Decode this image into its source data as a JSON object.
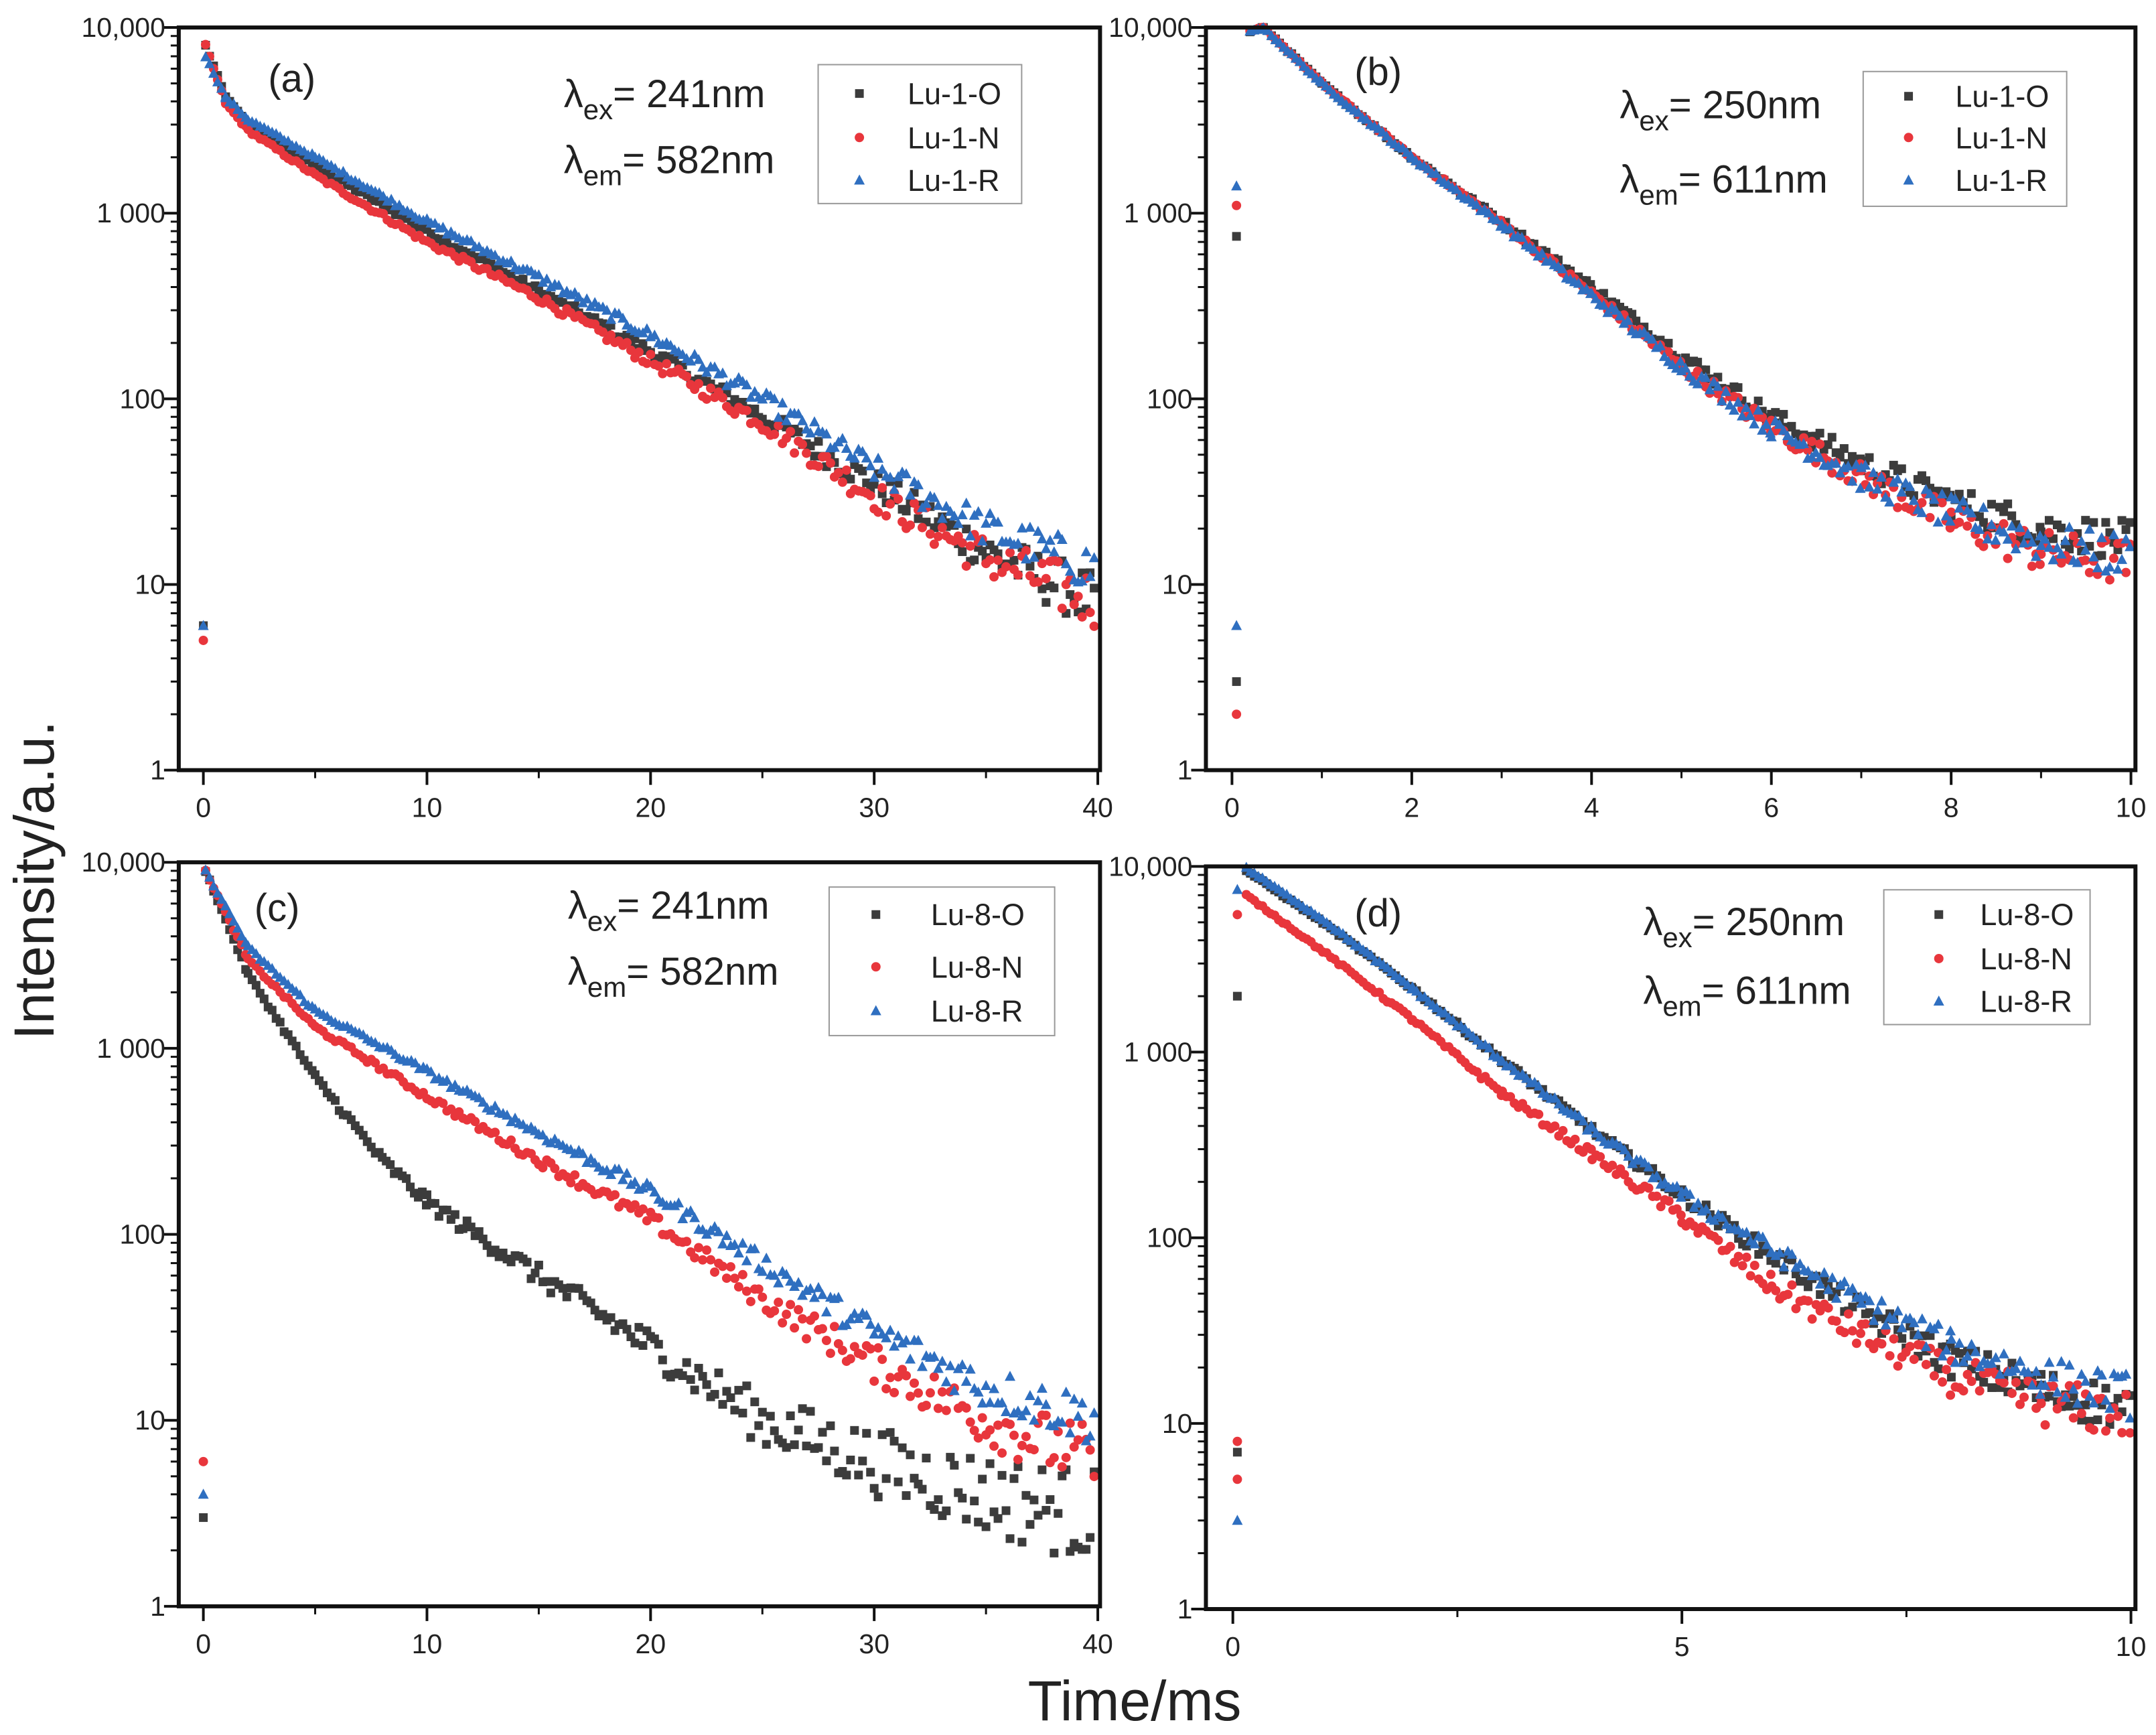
{
  "chart_data": {
    "type": "scatter",
    "ylabel": "Intensity/a.u.",
    "xlabel": "Time/ms",
    "yscale": "log",
    "ylim": [
      1,
      10000
    ],
    "yticks": [
      "1",
      "10",
      "100",
      "1 000",
      "10,000"
    ],
    "colors": {
      "O": "#3c3c3c",
      "N": "#e8363c",
      "R": "#2f6fc0"
    },
    "panels": [
      {
        "label": "(a)",
        "ex": {
          "lambda": "λ",
          "sub": "ex",
          "value": "= 241nm"
        },
        "em": {
          "lambda": "λ",
          "sub": "em",
          "value": "= 582nm"
        },
        "xlim": [
          -1.1,
          40.1
        ],
        "xticks": [
          0,
          10,
          20,
          30,
          40
        ],
        "xtick_labels": [
          "0",
          "10",
          "20",
          "30",
          "40"
        ],
        "legend": [
          "Lu-1-O",
          "Lu-1-N",
          "Lu-1-R"
        ],
        "series": [
          {
            "name": "Lu-1-O",
            "marker": "square",
            "outliers": [
              [
                0,
                6
              ]
            ],
            "points": [
              [
                0.1,
                8000
              ],
              [
                1,
                4200
              ],
              [
                2,
                3000
              ],
              [
                5,
                1800
              ],
              [
                10,
                800
              ],
              [
                15,
                380
              ],
              [
                20,
                180
              ],
              [
                25,
                80
              ],
              [
                30,
                35
              ],
              [
                35,
                15
              ],
              [
                40,
                8
              ]
            ]
          },
          {
            "name": "Lu-1-N",
            "marker": "circle",
            "outliers": [
              [
                0,
                5
              ]
            ],
            "points": [
              [
                0.1,
                8000
              ],
              [
                1,
                3900
              ],
              [
                2,
                2800
              ],
              [
                5,
                1600
              ],
              [
                10,
                700
              ],
              [
                15,
                350
              ],
              [
                20,
                160
              ],
              [
                25,
                75
              ],
              [
                30,
                30
              ],
              [
                35,
                14
              ],
              [
                40,
                8
              ]
            ]
          },
          {
            "name": "Lu-1-R",
            "marker": "triangle",
            "outliers": [
              [
                0,
                6
              ]
            ],
            "points": [
              [
                0.1,
                7000
              ],
              [
                1,
                4200
              ],
              [
                2,
                3200
              ],
              [
                5,
                2000
              ],
              [
                10,
                900
              ],
              [
                15,
                450
              ],
              [
                20,
                220
              ],
              [
                25,
                100
              ],
              [
                30,
                42
              ],
              [
                35,
                20
              ],
              [
                40,
                12
              ]
            ]
          }
        ]
      },
      {
        "label": "(b)",
        "ex": {
          "lambda": "λ",
          "sub": "ex",
          "value": "= 250nm"
        },
        "em": {
          "lambda": "λ",
          "sub": "em",
          "value": "= 611nm"
        },
        "xlim": [
          -0.29,
          10.05
        ],
        "xticks": [
          0,
          2,
          4,
          6,
          8,
          10
        ],
        "xtick_labels": [
          "0",
          "2",
          "4",
          "6",
          "8",
          "10"
        ],
        "legend": [
          "Lu-1-O",
          "Lu-1-N",
          "Lu-1-R"
        ],
        "series": [
          {
            "name": "Lu-1-O",
            "marker": "square",
            "outliers": [
              [
                0.05,
                3
              ],
              [
                0.05,
                750
              ]
            ],
            "points": [
              [
                0.2,
                9500
              ],
              [
                0.35,
                10000
              ],
              [
                1,
                5000
              ],
              [
                2,
                2000
              ],
              [
                3,
                900
              ],
              [
                4,
                400
              ],
              [
                5,
                170
              ],
              [
                6,
                80
              ],
              [
                7,
                45
              ],
              [
                8,
                28
              ],
              [
                9,
                20
              ],
              [
                10,
                17
              ]
            ]
          },
          {
            "name": "Lu-1-N",
            "marker": "circle",
            "outliers": [
              [
                0.05,
                2
              ],
              [
                0.05,
                1100
              ]
            ],
            "points": [
              [
                0.2,
                9500
              ],
              [
                0.35,
                10000
              ],
              [
                1,
                5000
              ],
              [
                2,
                2000
              ],
              [
                3,
                880
              ],
              [
                4,
                370
              ],
              [
                5,
                150
              ],
              [
                6,
                70
              ],
              [
                7,
                38
              ],
              [
                8,
                22
              ],
              [
                9,
                15
              ],
              [
                10,
                13
              ]
            ]
          },
          {
            "name": "Lu-1-R",
            "marker": "triangle",
            "outliers": [
              [
                0.05,
                6
              ],
              [
                0.05,
                1400
              ]
            ],
            "points": [
              [
                0.2,
                9500
              ],
              [
                0.35,
                10000
              ],
              [
                1,
                5000
              ],
              [
                2,
                2000
              ],
              [
                3,
                870
              ],
              [
                4,
                360
              ],
              [
                5,
                150
              ],
              [
                6,
                70
              ],
              [
                7,
                38
              ],
              [
                8,
                24
              ],
              [
                9,
                17
              ],
              [
                10,
                14
              ]
            ]
          }
        ]
      },
      {
        "label": "(c)",
        "ex": {
          "lambda": "λ",
          "sub": "ex",
          "value": "= 241nm"
        },
        "em": {
          "lambda": "λ",
          "sub": "em",
          "value": "= 582nm"
        },
        "xlim": [
          -1.1,
          40.1
        ],
        "xticks": [
          0,
          10,
          20,
          30,
          40
        ],
        "xtick_labels": [
          "0",
          "10",
          "20",
          "30",
          "40"
        ],
        "legend": [
          "Lu-8-O",
          "Lu-8-N",
          "Lu-8-R"
        ],
        "series": [
          {
            "name": "Lu-8-O",
            "marker": "square",
            "outliers": [
              [
                0,
                3
              ]
            ],
            "points": [
              [
                0.1,
                9000
              ],
              [
                2,
                2500
              ],
              [
                5,
                700
              ],
              [
                8,
                250
              ],
              [
                10,
                150
              ],
              [
                15,
                60
              ],
              [
                20,
                25
              ],
              [
                25,
                10
              ],
              [
                30,
                6
              ],
              [
                35,
                4
              ],
              [
                40,
                3
              ]
            ]
          },
          {
            "name": "Lu-8-N",
            "marker": "circle",
            "outliers": [
              [
                0,
                6
              ]
            ],
            "points": [
              [
                0.1,
                9000
              ],
              [
                2,
                3000
              ],
              [
                5,
                1300
              ],
              [
                10,
                550
              ],
              [
                15,
                250
              ],
              [
                20,
                120
              ],
              [
                25,
                45
              ],
              [
                30,
                20
              ],
              [
                35,
                10
              ],
              [
                40,
                6
              ]
            ]
          },
          {
            "name": "Lu-8-R",
            "marker": "triangle",
            "outliers": [
              [
                0,
                4
              ]
            ],
            "points": [
              [
                0.1,
                9000
              ],
              [
                2,
                3500
              ],
              [
                5,
                1600
              ],
              [
                10,
                750
              ],
              [
                15,
                350
              ],
              [
                20,
                170
              ],
              [
                25,
                70
              ],
              [
                30,
                30
              ],
              [
                35,
                15
              ],
              [
                40,
                10
              ]
            ]
          }
        ]
      },
      {
        "label": "(d)",
        "ex": {
          "lambda": "λ",
          "sub": "ex",
          "value": "= 250nm"
        },
        "em": {
          "lambda": "λ",
          "sub": "em",
          "value": "= 611nm"
        },
        "xlim": [
          -0.3,
          10.05
        ],
        "xticks": [
          0,
          5,
          10
        ],
        "xtick_labels": [
          "0",
          "5",
          "10"
        ],
        "legend": [
          "Lu-8-O",
          "Lu-8-N",
          "Lu-8-R"
        ],
        "series": [
          {
            "name": "Lu-8-O",
            "marker": "square",
            "outliers": [
              [
                0.05,
                7
              ],
              [
                0.05,
                2000
              ]
            ],
            "points": [
              [
                0.15,
                9500
              ],
              [
                1,
                5000
              ],
              [
                2,
                2200
              ],
              [
                3,
                900
              ],
              [
                4,
                380
              ],
              [
                5,
                170
              ],
              [
                6,
                80
              ],
              [
                7,
                40
              ],
              [
                8,
                22
              ],
              [
                9,
                15
              ],
              [
                10,
                12
              ]
            ]
          },
          {
            "name": "Lu-8-N",
            "marker": "circle",
            "outliers": [
              [
                0.05,
                8
              ],
              [
                0.05,
                5
              ],
              [
                0.05,
                5500
              ]
            ],
            "points": [
              [
                0.15,
                7000
              ],
              [
                1,
                3500
              ],
              [
                2,
                1500
              ],
              [
                3,
                600
              ],
              [
                4,
                280
              ],
              [
                5,
                130
              ],
              [
                6,
                55
              ],
              [
                7,
                30
              ],
              [
                8,
                18
              ],
              [
                9,
                13
              ],
              [
                10,
                11
              ]
            ]
          },
          {
            "name": "Lu-8-R",
            "marker": "triangle",
            "outliers": [
              [
                0.05,
                3
              ],
              [
                0.05,
                7500
              ]
            ],
            "points": [
              [
                0.15,
                9800
              ],
              [
                1,
                5200
              ],
              [
                2,
                2200
              ],
              [
                3,
                900
              ],
              [
                4,
                380
              ],
              [
                5,
                170
              ],
              [
                6,
                85
              ],
              [
                7,
                45
              ],
              [
                8,
                26
              ],
              [
                9,
                18
              ],
              [
                10,
                14
              ]
            ]
          }
        ]
      }
    ]
  }
}
